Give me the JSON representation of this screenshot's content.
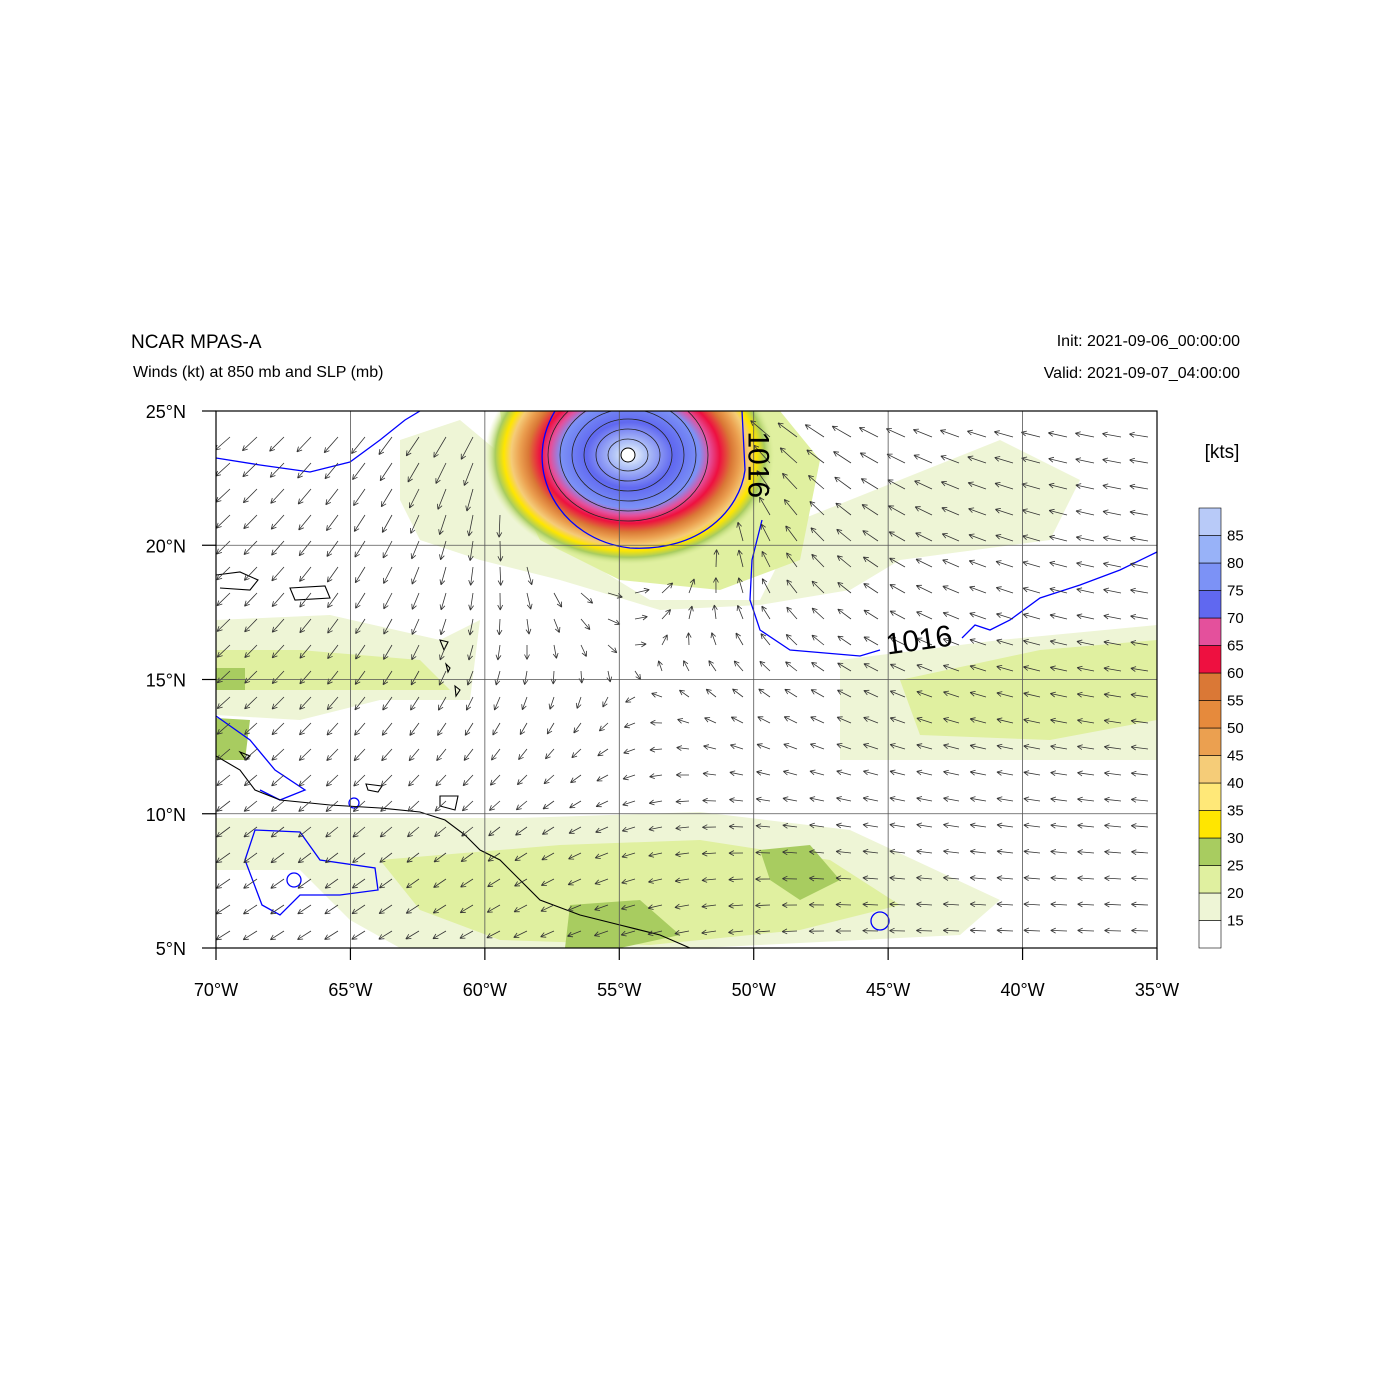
{
  "header": {
    "model": "NCAR MPAS-A",
    "field": "Winds (kt) at 850 mb and SLP (mb)",
    "init": "Init: 2021-09-06_00:00:00",
    "valid": "Valid: 2021-09-07_04:00:00"
  },
  "map": {
    "lon_range": [
      -70,
      -35
    ],
    "lat_range": [
      5,
      25
    ],
    "lon_ticks": [
      -70,
      -65,
      -60,
      -55,
      -50,
      -45,
      -40,
      -35
    ],
    "lat_ticks": [
      5,
      10,
      15,
      20,
      25
    ],
    "lon_tick_labels": [
      "70°W",
      "65°W",
      "60°W",
      "55°W",
      "50°W",
      "45°W",
      "40°W",
      "35°W"
    ],
    "lat_tick_labels": [
      "5°N",
      "10°N",
      "15°N",
      "20°N",
      "25°N"
    ],
    "grid": true,
    "storm_center": {
      "lon": -54.7,
      "lat": 23.4
    },
    "isobar_labels": [
      {
        "text": "1016",
        "lon": -50.2,
        "lat": 23.0,
        "rotation": 90
      },
      {
        "text": "1016",
        "lon": -43.8,
        "lat": 16.1,
        "rotation": -8
      }
    ],
    "isobar_color": "#0000ff",
    "coast_color": "#000000"
  },
  "colorbar": {
    "title": "[kts]",
    "labels": [
      "15",
      "20",
      "25",
      "30",
      "35",
      "40",
      "45",
      "50",
      "55",
      "60",
      "65",
      "70",
      "75",
      "80",
      "85"
    ],
    "colors": [
      "#ffffff",
      "#eef5d6",
      "#e0f0a0",
      "#a8cc60",
      "#ffe600",
      "#ffe878",
      "#f5cc78",
      "#eba050",
      "#e68a3c",
      "#da7836",
      "#ee1040",
      "#e4509c",
      "#6068f0",
      "#7c92f6",
      "#98b2f8",
      "#b8caf8"
    ]
  }
}
